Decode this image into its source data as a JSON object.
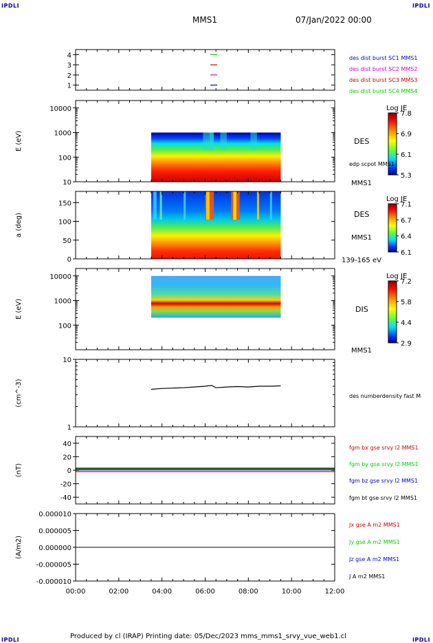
{
  "header": {
    "logo": "IPDLI",
    "spacecraft": "MMS1",
    "date": "07/Jan/2022 00:00"
  },
  "footer": {
    "text": "Produced by cl (IRAP)   Printing date: 05/Dec/2023   mms_mms1_srvy_vue_web1.cl"
  },
  "colors": {
    "mms1": "#0000cc",
    "mms2": "#cc00cc",
    "mms3": "#cc0000",
    "mms4": "#00cc00",
    "black": "#000000"
  },
  "chart_data": [
    {
      "type": "scatter",
      "panel": "burst",
      "yticks": [
        "4",
        "3",
        "2",
        "1"
      ],
      "ylim": [
        0.5,
        4.5
      ],
      "xlim": [
        0,
        12
      ],
      "markers": [
        {
          "sc": 4,
          "x": 6.4
        },
        {
          "sc": 3,
          "x": 6.4
        },
        {
          "sc": 2,
          "x": 6.4
        },
        {
          "sc": 1,
          "x": 6.4
        }
      ],
      "legend": [
        {
          "label": "des dist burst SC1 MMS1",
          "color": "#0000cc"
        },
        {
          "label": "des dist burst SC2 MMS2",
          "color": "#cc00cc"
        },
        {
          "label": "des dist burst SC3 MMS3",
          "color": "#cc0000"
        },
        {
          "label": "des dist burst SC4 MMS4",
          "color": "#00cc00"
        }
      ]
    },
    {
      "type": "heatmap",
      "panel": "des-energy",
      "ylabel": "E (eV)",
      "yscale": "log",
      "ylim": [
        10,
        20000
      ],
      "yticks": [
        "10000",
        "1000",
        "100",
        "10"
      ],
      "x_range": [
        3.5,
        9.5
      ],
      "y_top": 1000,
      "label": "DES",
      "side_label": "edp scpot MMS1",
      "bottom_label": "MMS1",
      "colorbar": {
        "title": "Log JE",
        "ticks": [
          "7.8",
          "6.9",
          "6.1",
          "5.3"
        ]
      }
    },
    {
      "type": "heatmap",
      "panel": "des-pitch",
      "ylabel": "a (deg)",
      "ylim": [
        0,
        180
      ],
      "yticks": [
        "150",
        "100",
        "50",
        "0"
      ],
      "x_range": [
        3.5,
        9.5
      ],
      "label": "DES",
      "side_label": "MMS1",
      "bottom_label": "139-165 eV",
      "colorbar": {
        "title": "Log JE",
        "ticks": [
          "7.1",
          "6.7",
          "6.4",
          "6.1"
        ]
      }
    },
    {
      "type": "heatmap",
      "panel": "dis-energy",
      "ylabel": "E (eV)",
      "yscale": "log",
      "ylim": [
        10,
        20000
      ],
      "yticks": [
        "10000",
        "1000",
        "100"
      ],
      "x_range": [
        3.5,
        9.5
      ],
      "y_range": [
        200,
        10000
      ],
      "label": "DIS",
      "bottom_label": "MMS1",
      "colorbar": {
        "title": "Log JE",
        "ticks": [
          "7.2",
          "5.8",
          "4.4",
          "2.9"
        ]
      }
    },
    {
      "type": "line",
      "panel": "density",
      "ylabel": "(cm^-3)",
      "yscale": "log",
      "ylim": [
        1,
        10
      ],
      "yticks": [
        "10",
        "1"
      ],
      "series": [
        {
          "name": "des numberdensity fast M",
          "x": [
            3.5,
            4.0,
            4.5,
            5.0,
            5.5,
            6.0,
            6.3,
            6.5,
            7.0,
            7.5,
            8.0,
            8.5,
            9.0,
            9.5
          ],
          "y": [
            3.6,
            3.7,
            3.75,
            3.8,
            3.9,
            4.0,
            4.1,
            3.8,
            3.9,
            3.95,
            3.9,
            4.0,
            4.0,
            4.05
          ]
        }
      ]
    },
    {
      "type": "line",
      "panel": "magnetic-field",
      "ylabel": "(nT)",
      "ylim": [
        -50,
        50
      ],
      "yticks": [
        "40",
        "20",
        "0",
        "-20",
        "-40"
      ],
      "series": [
        {
          "name": "fgm bx gse srvy l2 MMS1",
          "color": "#cc0000",
          "x": [
            0,
            12
          ],
          "y": [
            -2,
            -2
          ]
        },
        {
          "name": "fgm by gse srvy l2 MMS1",
          "color": "#00cc00",
          "x": [
            0,
            12
          ],
          "y": [
            2,
            2
          ]
        },
        {
          "name": "fgm bz gse srvy l2 MMS1",
          "color": "#0000cc",
          "x": [
            0,
            12
          ],
          "y": [
            0.5,
            0.5
          ]
        },
        {
          "name": "fgm bt gse srvy l2 MMS1",
          "color": "#000000",
          "x": [
            0,
            12
          ],
          "y": [
            3,
            3
          ]
        }
      ]
    },
    {
      "type": "line",
      "panel": "current",
      "ylabel": "(A/m2)",
      "ylim": [
        -1e-05,
        1e-05
      ],
      "yticks": [
        "0.000010",
        "0.000005",
        "0.000000",
        "-0.000005",
        "-0.000010"
      ],
      "xticks": [
        "00:00",
        "02:00",
        "04:00",
        "06:00",
        "08:00",
        "10:00",
        "12:00"
      ],
      "series": [
        {
          "name": "Jx gse A m2 MMS1",
          "color": "#cc0000",
          "x": [
            0,
            12
          ],
          "y": [
            0,
            0
          ]
        },
        {
          "name": "Jy gse A m2 MMS1",
          "color": "#00cc00",
          "x": [
            0,
            12
          ],
          "y": [
            0,
            0
          ]
        },
        {
          "name": "Jz gse A m2 MMS1",
          "color": "#0000cc",
          "x": [
            0,
            12
          ],
          "y": [
            0,
            0
          ]
        },
        {
          "name": "J A m2 MMS1",
          "color": "#000000",
          "x": [
            0,
            12
          ],
          "y": [
            0,
            0
          ]
        }
      ]
    }
  ]
}
